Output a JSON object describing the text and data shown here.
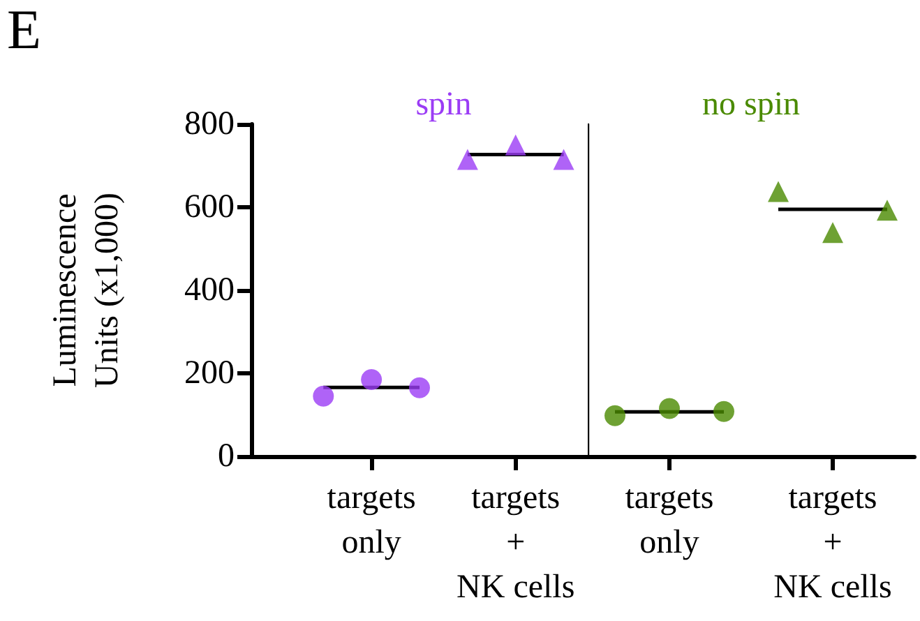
{
  "chart_data": [
    {
      "type": "scatter",
      "title": "E",
      "ylabel": "Luminescence\nUnits (x1,000)",
      "categories": [
        null,
        null,
        "targets\nonly",
        null,
        null,
        "targets\n+\nNK cells",
        null
      ],
      "ylim": [
        0,
        800
      ],
      "yticks": [
        0,
        200,
        400,
        600,
        800
      ],
      "grid": false,
      "legend": false,
      "series": [
        {
          "type": "line",
          "color": "#000000",
          "marker": "none",
          "values": [
            null,
            166,
            166,
            166,
            null,
            null,
            null
          ]
        },
        {
          "type": "line",
          "color": "#000000",
          "marker": "none",
          "values": [
            null,
            null,
            null,
            null,
            727,
            727,
            727
          ]
        },
        {
          "name": "spin",
          "color": "#9b3cf5",
          "marker": "circle",
          "values": [
            null,
            145,
            185,
            165,
            null,
            null,
            null
          ]
        },
        {
          "color": "#9b3cf5",
          "marker": "triangle",
          "values": [
            null,
            null,
            null,
            null,
            715,
            750,
            715
          ]
        }
      ]
    },
    {
      "type": "scatter",
      "tick_labels": "x",
      "categories": [
        null,
        "targets\nonly",
        null,
        null,
        "targets\n+\nNK cells",
        null
      ],
      "ylim": [
        0,
        800
      ],
      "grid": false,
      "legend": false,
      "series": [
        {
          "type": "line",
          "color": "#000000",
          "marker": "none",
          "values": [
            107,
            107,
            107,
            null,
            null,
            null
          ]
        },
        {
          "type": "line",
          "color": "#000000",
          "marker": "none",
          "values": [
            null,
            null,
            null,
            595,
            595,
            595
          ]
        },
        {
          "name": "no spin",
          "color": "#4a8a00",
          "marker": "circle",
          "values": [
            98,
            115,
            108,
            null,
            null,
            null
          ]
        },
        {
          "color": "#4a8a00",
          "marker": "triangle",
          "values": [
            null,
            null,
            null,
            638,
            539,
            593
          ]
        }
      ]
    }
  ]
}
